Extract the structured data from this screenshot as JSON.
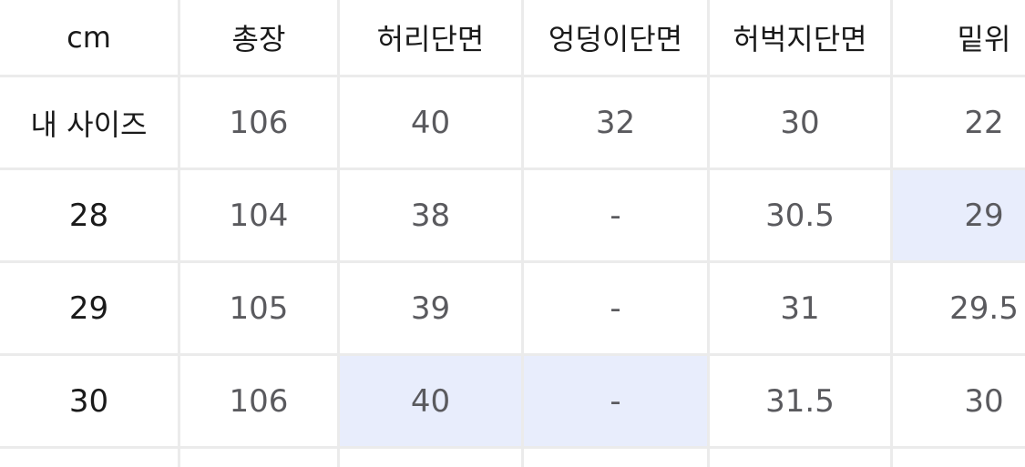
{
  "headers": [
    "cm",
    "총장",
    "허리단면",
    "엉덩이단면",
    "허벅지단면",
    "밑위"
  ],
  "rows": [
    {
      "label": "내 사이즈",
      "values": [
        "106",
        "40",
        "32",
        "30",
        "22"
      ]
    },
    {
      "label": "28",
      "values": [
        "104",
        "38",
        "-",
        "30.5",
        "29"
      ]
    },
    {
      "label": "29",
      "values": [
        "105",
        "39",
        "-",
        "31",
        "29.5"
      ]
    },
    {
      "label": "30",
      "values": [
        "106",
        "40",
        "-",
        "31.5",
        "30"
      ]
    }
  ],
  "colors": {
    "highlight": "#e8edfc",
    "grid": "#ebebeb"
  }
}
